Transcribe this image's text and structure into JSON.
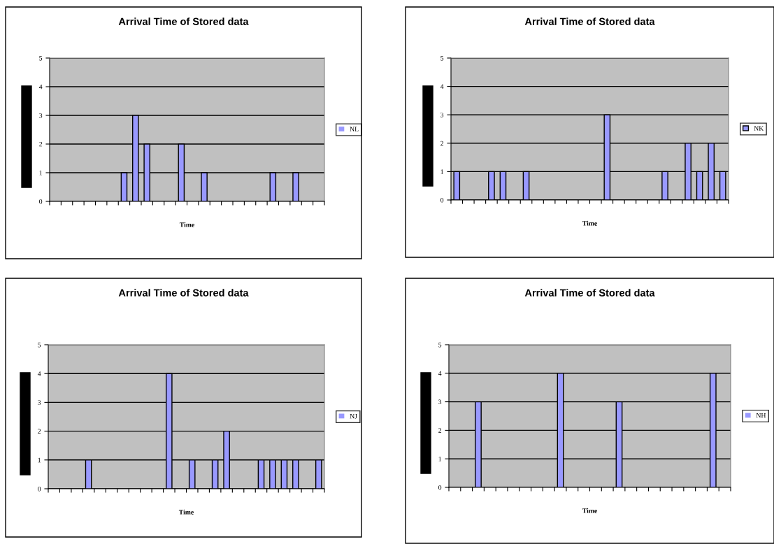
{
  "chart_data": [
    {
      "type": "bar",
      "title": "Arrival Time of Stored data",
      "xlabel": "Time",
      "categories": [
        null,
        null,
        null,
        null,
        null,
        null,
        null,
        null,
        null,
        null,
        null,
        null,
        null,
        null,
        null,
        null,
        null,
        null,
        null,
        null,
        null,
        null,
        null,
        null
      ],
      "series": [
        {
          "name": "NL",
          "color": "#9999ff",
          "values": [
            0,
            0,
            0,
            0,
            0,
            0,
            1,
            3,
            2,
            0,
            0,
            2,
            0,
            1,
            0,
            0,
            0,
            0,
            0,
            1,
            0,
            1,
            0,
            0
          ]
        }
      ],
      "ylim": [
        0,
        5
      ],
      "yticks": [
        0,
        1,
        2,
        3,
        4,
        5
      ],
      "grid": "y",
      "legend": "right"
    },
    {
      "type": "bar",
      "title": "Arrival Time of Stored data",
      "xlabel": "Time",
      "categories": [
        null,
        null,
        null,
        null,
        null,
        null,
        null,
        null,
        null,
        null,
        null,
        null,
        null,
        null,
        null,
        null,
        null,
        null,
        null,
        null,
        null,
        null,
        null,
        null
      ],
      "series": [
        {
          "name": "NK",
          "color": "#9999ff",
          "values": [
            1,
            0,
            0,
            1,
            1,
            0,
            1,
            0,
            0,
            0,
            0,
            0,
            0,
            3,
            0,
            0,
            0,
            0,
            1,
            0,
            2,
            1,
            2,
            1
          ]
        }
      ],
      "ylim": [
        0,
        5
      ],
      "yticks": [
        0,
        1,
        2,
        3,
        4,
        5
      ],
      "grid": "y",
      "legend": "right"
    },
    {
      "type": "bar",
      "title": "Arrival Time of Stored data",
      "xlabel": "Time",
      "categories": [
        null,
        null,
        null,
        null,
        null,
        null,
        null,
        null,
        null,
        null,
        null,
        null,
        null,
        null,
        null,
        null,
        null,
        null,
        null,
        null,
        null,
        null,
        null,
        null
      ],
      "series": [
        {
          "name": "NJ",
          "color": "#9999ff",
          "values": [
            0,
            0,
            0,
            1,
            0,
            0,
            0,
            0,
            0,
            0,
            4,
            0,
            1,
            0,
            1,
            2,
            0,
            0,
            1,
            1,
            1,
            1,
            0,
            1
          ]
        }
      ],
      "ylim": [
        0,
        5
      ],
      "yticks": [
        0,
        1,
        2,
        3,
        4,
        5
      ],
      "grid": "y",
      "legend": "right"
    },
    {
      "type": "bar",
      "title": "Arrival Time of Stored data",
      "xlabel": "Time",
      "categories": [
        null,
        null,
        null,
        null,
        null,
        null,
        null,
        null,
        null,
        null,
        null,
        null,
        null,
        null,
        null,
        null,
        null,
        null,
        null,
        null,
        null,
        null,
        null,
        null
      ],
      "series": [
        {
          "name": "NH",
          "color": "#9999ff",
          "values": [
            0,
            0,
            3,
            0,
            0,
            0,
            0,
            0,
            0,
            4,
            0,
            0,
            0,
            0,
            3,
            0,
            0,
            0,
            0,
            0,
            0,
            0,
            4,
            0
          ]
        }
      ],
      "ylim": [
        0,
        5
      ],
      "yticks": [
        0,
        1,
        2,
        3,
        4,
        5
      ],
      "grid": "y",
      "legend": "right"
    }
  ]
}
